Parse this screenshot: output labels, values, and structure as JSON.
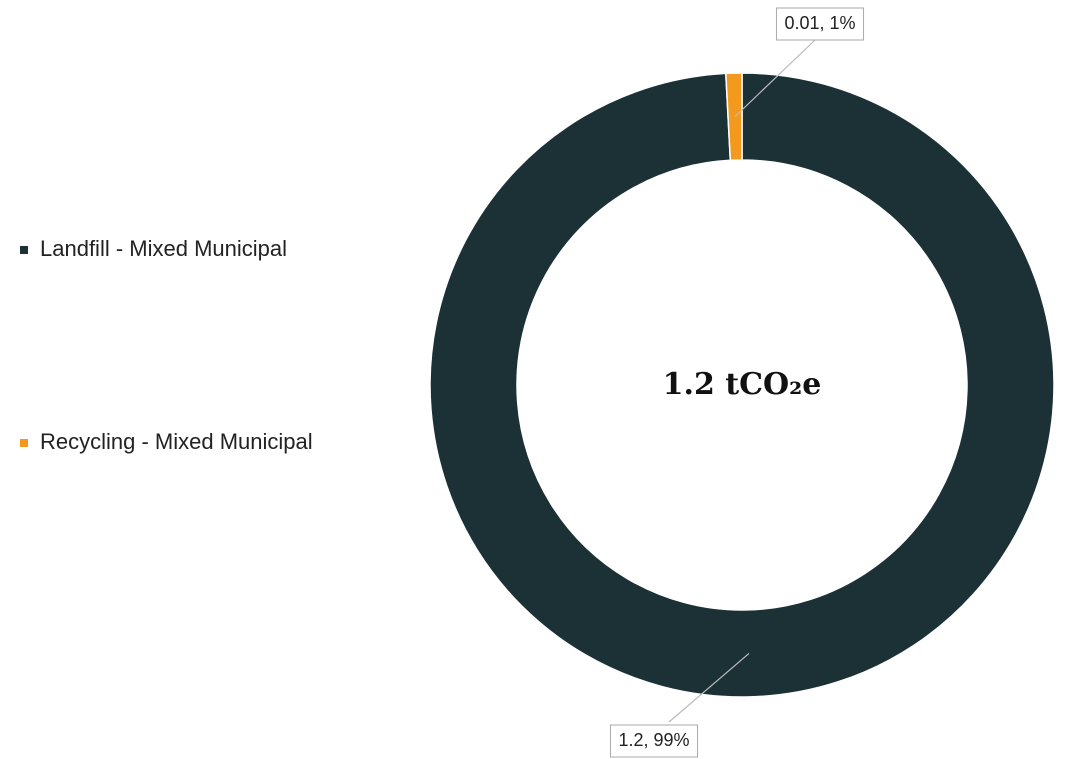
{
  "chart_data": {
    "type": "donut",
    "center_label": "1.2 tCO₂e",
    "categories": [
      "Landfill - Mixed Municipal",
      "Recycling - Mixed Municipal"
    ],
    "values": [
      1.2,
      0.01
    ],
    "value_labels": [
      "1.2, 99%",
      "0.01, 1%"
    ],
    "colors": [
      "#1c3136",
      "#f39a1e"
    ],
    "legend": "left"
  }
}
